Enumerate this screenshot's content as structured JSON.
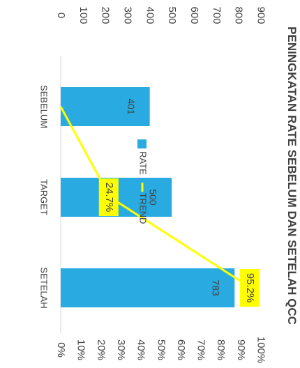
{
  "chart_data": {
    "type": "bar",
    "orientation": "rotated-90-clockwise",
    "title": "PENINGKATAN RATE SEBELUM DAN SETELAH QCC",
    "categories": [
      "SEBELUM",
      "TARGET",
      "SETELAH"
    ],
    "series": [
      {
        "name": "RATE",
        "type": "bar",
        "values": [
          401,
          500,
          783
        ],
        "data_labels": [
          "401",
          "500",
          "783"
        ]
      },
      {
        "name": "TREND",
        "type": "line",
        "axis": "secondary",
        "values": [
          0,
          24.7,
          95.2
        ],
        "data_labels": [
          "",
          "24.7%",
          "95.2%"
        ]
      }
    ],
    "primary_axis": {
      "range": [
        0,
        900
      ],
      "ticks": [
        "0",
        "100",
        "200",
        "300",
        "400",
        "500",
        "600",
        "700",
        "800",
        "900"
      ]
    },
    "secondary_axis": {
      "range": [
        0,
        100
      ],
      "ticks": [
        "0%",
        "10%",
        "20%",
        "30%",
        "40%",
        "50%",
        "60%",
        "70%",
        "80%",
        "90%",
        "100%"
      ]
    },
    "legend": {
      "placement": "bottom",
      "items": [
        "RATE",
        "TREND"
      ]
    },
    "grid": false,
    "colors": {
      "bar": "#29ABE2",
      "trend": "#FFFF00",
      "label_box": "#FFFF00",
      "text": "#404040",
      "axis": "#d9d9d9"
    }
  }
}
